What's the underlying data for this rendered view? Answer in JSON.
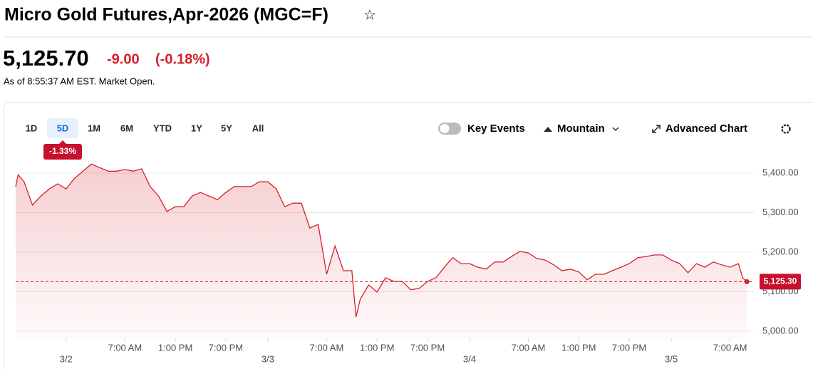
{
  "header": {
    "title": "Micro Gold Futures,Apr-2026 (MGC=F)",
    "price": "5,125.70",
    "change": "-9.00",
    "change_percent": "(-0.18%)",
    "timestamp": "As of 8:55:37 AM EST. Market Open."
  },
  "toolbar": {
    "ranges": [
      "1D",
      "5D",
      "1M",
      "6M",
      "YTD",
      "1Y",
      "5Y",
      "All"
    ],
    "active_range": "5D",
    "range_change": "-1.33%",
    "key_events": "Key Events",
    "chart_style": "Mountain",
    "advanced": "Advanced Chart"
  },
  "chart_data": {
    "type": "area",
    "color": "#d6202b",
    "x": [
      -6,
      -5.7,
      -5,
      -4,
      -3,
      -2,
      -1,
      0,
      1,
      2,
      3,
      4,
      5,
      6,
      7,
      8,
      9,
      10,
      11,
      12,
      13,
      14,
      15,
      16,
      17,
      18,
      19,
      20,
      21,
      22,
      23,
      24,
      25,
      26,
      27,
      28,
      29,
      30,
      31,
      32,
      33,
      34,
      34.5,
      35,
      36,
      37,
      38,
      39,
      40,
      41,
      42,
      43,
      44,
      45,
      46,
      47,
      48,
      49,
      50,
      51,
      52,
      53,
      54,
      55,
      56,
      57,
      58,
      59,
      60,
      61,
      62,
      63,
      64,
      65,
      66,
      67,
      68,
      69,
      70,
      71,
      72,
      73,
      74,
      75,
      76,
      77,
      78,
      79,
      80,
      80.5,
      81
    ],
    "series": [
      {
        "name": "MGC=F",
        "values": [
          5366,
          5396,
          5378,
          5319,
          5342,
          5360,
          5373,
          5360,
          5387,
          5405,
          5423,
          5414,
          5405,
          5405,
          5409,
          5405,
          5411,
          5366,
          5342,
          5303,
          5315,
          5315,
          5342,
          5351,
          5342,
          5333,
          5351,
          5366,
          5366,
          5366,
          5378,
          5378,
          5360,
          5315,
          5324,
          5324,
          5261,
          5270,
          5144,
          5216,
          5153,
          5153,
          5036,
          5081,
          5117,
          5099,
          5135,
          5126,
          5126,
          5105,
          5108,
          5126,
          5135,
          5162,
          5186,
          5171,
          5171,
          5162,
          5157,
          5175,
          5175,
          5189,
          5202,
          5198,
          5184,
          5180,
          5168,
          5153,
          5157,
          5150,
          5130,
          5144,
          5144,
          5153,
          5162,
          5171,
          5186,
          5189,
          5193,
          5193,
          5180,
          5171,
          5148,
          5171,
          5162,
          5175,
          5168,
          5162,
          5171,
          5135,
          5125.3
        ]
      }
    ],
    "current_price": {
      "value": 5125.3,
      "label": "5,125.30"
    },
    "xlim": [
      -6,
      82
    ],
    "ylim": [
      4980,
      5430
    ],
    "xticks": [
      {
        "value": 0,
        "label": "3/2"
      },
      {
        "value": 7,
        "label": "7:00 AM"
      },
      {
        "value": 13,
        "label": "1:00 PM"
      },
      {
        "value": 19,
        "label": "7:00 PM"
      },
      {
        "value": 24,
        "label": "3/3"
      },
      {
        "value": 31,
        "label": "7:00 AM"
      },
      {
        "value": 37,
        "label": "1:00 PM"
      },
      {
        "value": 43,
        "label": "7:00 PM"
      },
      {
        "value": 48,
        "label": "3/4"
      },
      {
        "value": 55,
        "label": "7:00 AM"
      },
      {
        "value": 61,
        "label": "1:00 PM"
      },
      {
        "value": 67,
        "label": "7:00 PM"
      },
      {
        "value": 72,
        "label": "3/5"
      },
      {
        "value": 79,
        "label": "7:00 AM"
      }
    ],
    "yticks": [
      {
        "value": 5000,
        "label": "5,000.00"
      },
      {
        "value": 5100,
        "label": "5,100.00"
      },
      {
        "value": 5200,
        "label": "5,200.00"
      },
      {
        "value": 5300,
        "label": "5,300.00"
      },
      {
        "value": 5400,
        "label": "5,400.00"
      }
    ],
    "grid": true
  }
}
